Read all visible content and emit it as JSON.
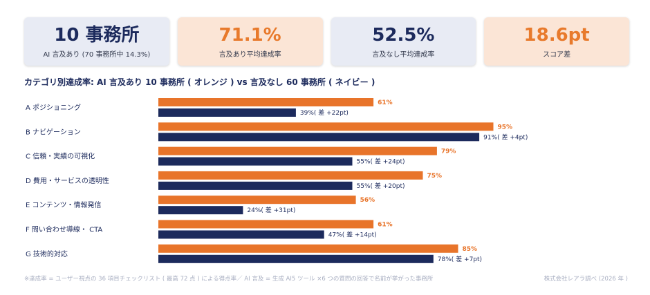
{
  "kpis": [
    {
      "value": "10 事務所",
      "label": "AI 言及あり (70 事務所中 14.3%)",
      "theme": "navy"
    },
    {
      "value": "71.1%",
      "label": "言及あり平均達成率",
      "theme": "orange"
    },
    {
      "value": "52.5%",
      "label": "言及なし平均達成率",
      "theme": "navy"
    },
    {
      "value": "18.6pt",
      "label": "スコア差",
      "theme": "orange"
    }
  ],
  "chart_title": "カテゴリ別達成率:  AI 言及あり 10 事務所 ( オレンジ ) vs  言及なし 60 事務所 ( ネイビー )",
  "colors": {
    "orange": "#e8742a",
    "navy": "#1c2a5c"
  },
  "chart_data": {
    "type": "bar",
    "orientation": "horizontal",
    "categories": [
      "A  ポジショニング",
      "B  ナビゲーション",
      "C  信頼・実績の可視化",
      "D  費用・サービスの透明性",
      "E  コンテンツ・情報発信",
      "F  問い合わせ導線・ CTA",
      "G  技術的対応"
    ],
    "series": [
      {
        "name": "AI 言及あり",
        "values": [
          61,
          95,
          79,
          75,
          56,
          61,
          85
        ],
        "labels": [
          "61%",
          "95%",
          "79%",
          "75%",
          "56%",
          "61%",
          "85%"
        ]
      },
      {
        "name": "言及なし",
        "values": [
          39,
          91,
          55,
          55,
          24,
          47,
          78
        ],
        "labels": [
          "39%( 差 +22pt)",
          "91%( 差 +4pt)",
          "55%( 差 +24pt)",
          "55%( 差 +20pt)",
          "24%( 差 +31pt)",
          "47%( 差 +14pt)",
          "78%( 差 +7pt)"
        ]
      }
    ],
    "xlim": [
      0,
      100
    ]
  },
  "footnote": "※達成率 = ユーザー視点の 36 項目チェックリスト ( 最高 72 点 ) による得点率／ AI 言及 = 生成 AI5 ツール ×6 つの質問の回答で名前が挙がった事務所",
  "credit": "株式会社レアラ調べ (2026 年 )"
}
